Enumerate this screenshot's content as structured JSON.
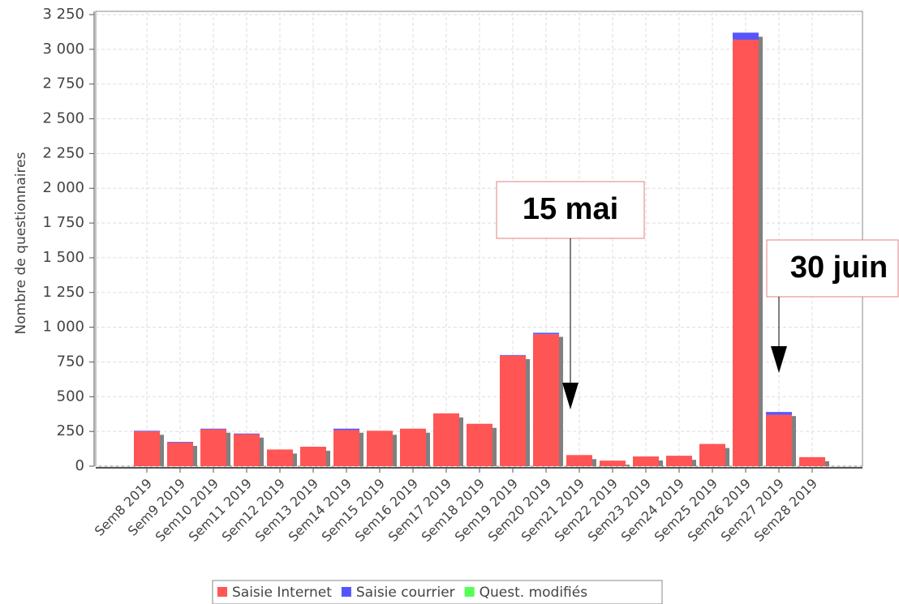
{
  "chart_data": {
    "type": "bar",
    "ylabel": "Nombre de questionnaires",
    "categories": [
      "Sem8 2019",
      "Sem9 2019",
      "Sem10 2019",
      "Sem11 2019",
      "Sem12 2019",
      "Sem13 2019",
      "Sem14 2019",
      "Sem15 2019",
      "Sem16 2019",
      "Sem17 2019",
      "Sem18 2019",
      "Sem19 2019",
      "Sem20 2019",
      "Sem21 2019",
      "Sem22 2019",
      "Sem23 2019",
      "Sem24 2019",
      "Sem25 2019",
      "Sem26 2019",
      "Sem27 2019",
      "Sem28 2019"
    ],
    "series": [
      {
        "name": "Saisie Internet",
        "color": "#ff5555",
        "values": [
          250,
          170,
          265,
          230,
          120,
          140,
          260,
          255,
          270,
          380,
          305,
          795,
          950,
          80,
          40,
          70,
          75,
          160,
          3070,
          370,
          65
        ]
      },
      {
        "name": "Saisie courrier",
        "color": "#5555ff",
        "values": [
          5,
          5,
          5,
          5,
          0,
          0,
          10,
          0,
          0,
          0,
          0,
          5,
          10,
          0,
          0,
          0,
          0,
          0,
          50,
          20,
          0
        ]
      },
      {
        "name": "Quest. modifiés",
        "color": "#55ff55",
        "values": [
          0,
          0,
          0,
          0,
          0,
          0,
          0,
          0,
          0,
          0,
          0,
          0,
          0,
          0,
          0,
          0,
          0,
          0,
          0,
          0,
          0
        ]
      }
    ],
    "ylim": [
      0,
      3250
    ],
    "yticks": [
      0,
      250,
      500,
      750,
      {
        "value": 1000,
        "label": "1 000"
      },
      {
        "value": 1250,
        "label": "1 250"
      },
      {
        "value": 1500,
        "label": "1 500"
      },
      {
        "value": 1750,
        "label": "1 750"
      },
      {
        "value": 2000,
        "label": "2 000"
      },
      {
        "value": 2250,
        "label": "2 250"
      },
      {
        "value": 2500,
        "label": "2 500"
      },
      {
        "value": 2750,
        "label": "2 750"
      },
      {
        "value": 3000,
        "label": "3 000"
      },
      {
        "value": 3250,
        "label": "3 250"
      }
    ],
    "grid": true,
    "annotations": [
      "15 mai",
      "30 juin"
    ]
  }
}
